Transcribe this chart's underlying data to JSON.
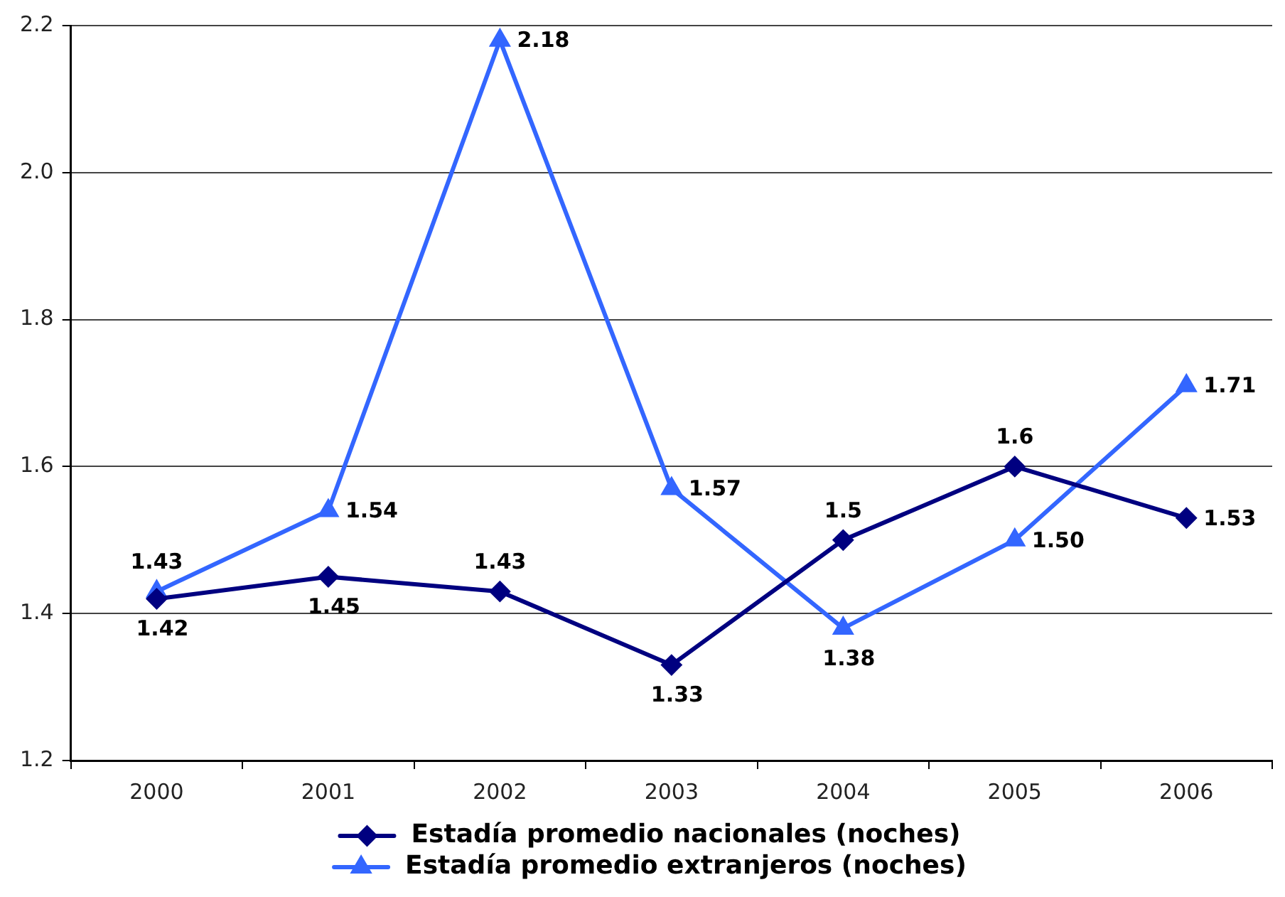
{
  "chart_data": {
    "type": "line",
    "categories": [
      "2000",
      "2001",
      "2002",
      "2003",
      "2004",
      "2005",
      "2006"
    ],
    "series": [
      {
        "name": "Estadía promedio nacionales (noches)",
        "color": "#000080",
        "marker": "diamond",
        "values": [
          1.42,
          1.45,
          1.43,
          1.33,
          1.5,
          1.6,
          1.53
        ],
        "value_labels": [
          "1.42",
          "1.45",
          "1.43",
          "1.33",
          "1.5",
          "1.6",
          "1.53"
        ]
      },
      {
        "name": "Estadía promedio extranjeros (noches)",
        "color": "#3366ff",
        "marker": "triangle",
        "values": [
          1.43,
          1.54,
          2.18,
          1.57,
          1.38,
          1.5,
          1.71
        ],
        "value_labels": [
          "1.43",
          "1.54",
          "2.18",
          "1.57",
          "1.38",
          "1.50",
          "1.71"
        ]
      }
    ],
    "ylim": [
      1.2,
      2.2
    ],
    "yticks": [
      1.2,
      1.4,
      1.6,
      1.8,
      {
        "value": 2,
        "label": "2.0"
      },
      2.2
    ],
    "grid": "y",
    "legend": "bottom",
    "line_style": "solid"
  }
}
